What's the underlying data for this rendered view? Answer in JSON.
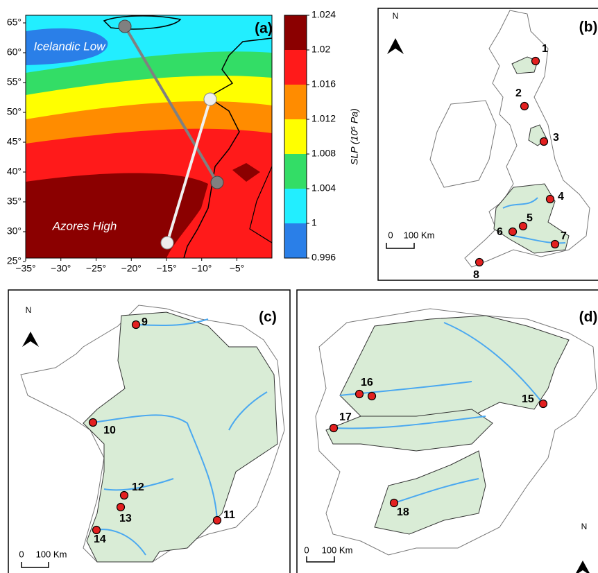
{
  "panel_a": {
    "label": "(a)",
    "annotations": [
      "Icelandic Low",
      "Azores High"
    ],
    "lat_ticks": [
      {
        "value": 65,
        "label": "65°"
      },
      {
        "value": 60,
        "label": "60°"
      },
      {
        "value": 55,
        "label": "55°"
      },
      {
        "value": 50,
        "label": "50°"
      },
      {
        "value": 45,
        "label": "45°"
      },
      {
        "value": 40,
        "label": "40°"
      },
      {
        "value": 35,
        "label": "35°"
      },
      {
        "value": 30,
        "label": "30°"
      },
      {
        "value": 25,
        "label": "25°"
      }
    ],
    "lon_ticks": [
      {
        "value": -35,
        "label": "−35°"
      },
      {
        "value": -30,
        "label": "−30°"
      },
      {
        "value": -25,
        "label": "−25°"
      },
      {
        "value": -20,
        "label": "−20°"
      },
      {
        "value": -15,
        "label": "−15°"
      },
      {
        "value": -10,
        "label": "−10°"
      },
      {
        "value": -5,
        "label": "−5°"
      }
    ],
    "colorbar": {
      "title": "SLP (10⁵ Pa)",
      "ticks": [
        1.024,
        1.02,
        1.016,
        1.012,
        1.008,
        1.004,
        1,
        0.996
      ],
      "colors": [
        "#8b0000",
        "#ff1a1a",
        "#ff8c00",
        "#ffff00",
        "#33dd66",
        "#22eeff",
        "#2a7fe8"
      ]
    }
  },
  "panel_b": {
    "label": "(b)",
    "north": "N",
    "scale_start": 0,
    "scale_end": "100 Km",
    "stations": [
      1,
      2,
      3,
      4,
      5,
      6,
      7,
      8
    ]
  },
  "panel_c": {
    "label": "(c)",
    "north": "N",
    "scale_start": 0,
    "scale_end": "100 Km",
    "stations": [
      9,
      10,
      11,
      12,
      13,
      14
    ]
  },
  "panel_d": {
    "label": "(d)",
    "north": "N",
    "scale_start": 0,
    "scale_end": "100 Km",
    "stations": [
      15,
      16,
      17,
      18
    ]
  }
}
